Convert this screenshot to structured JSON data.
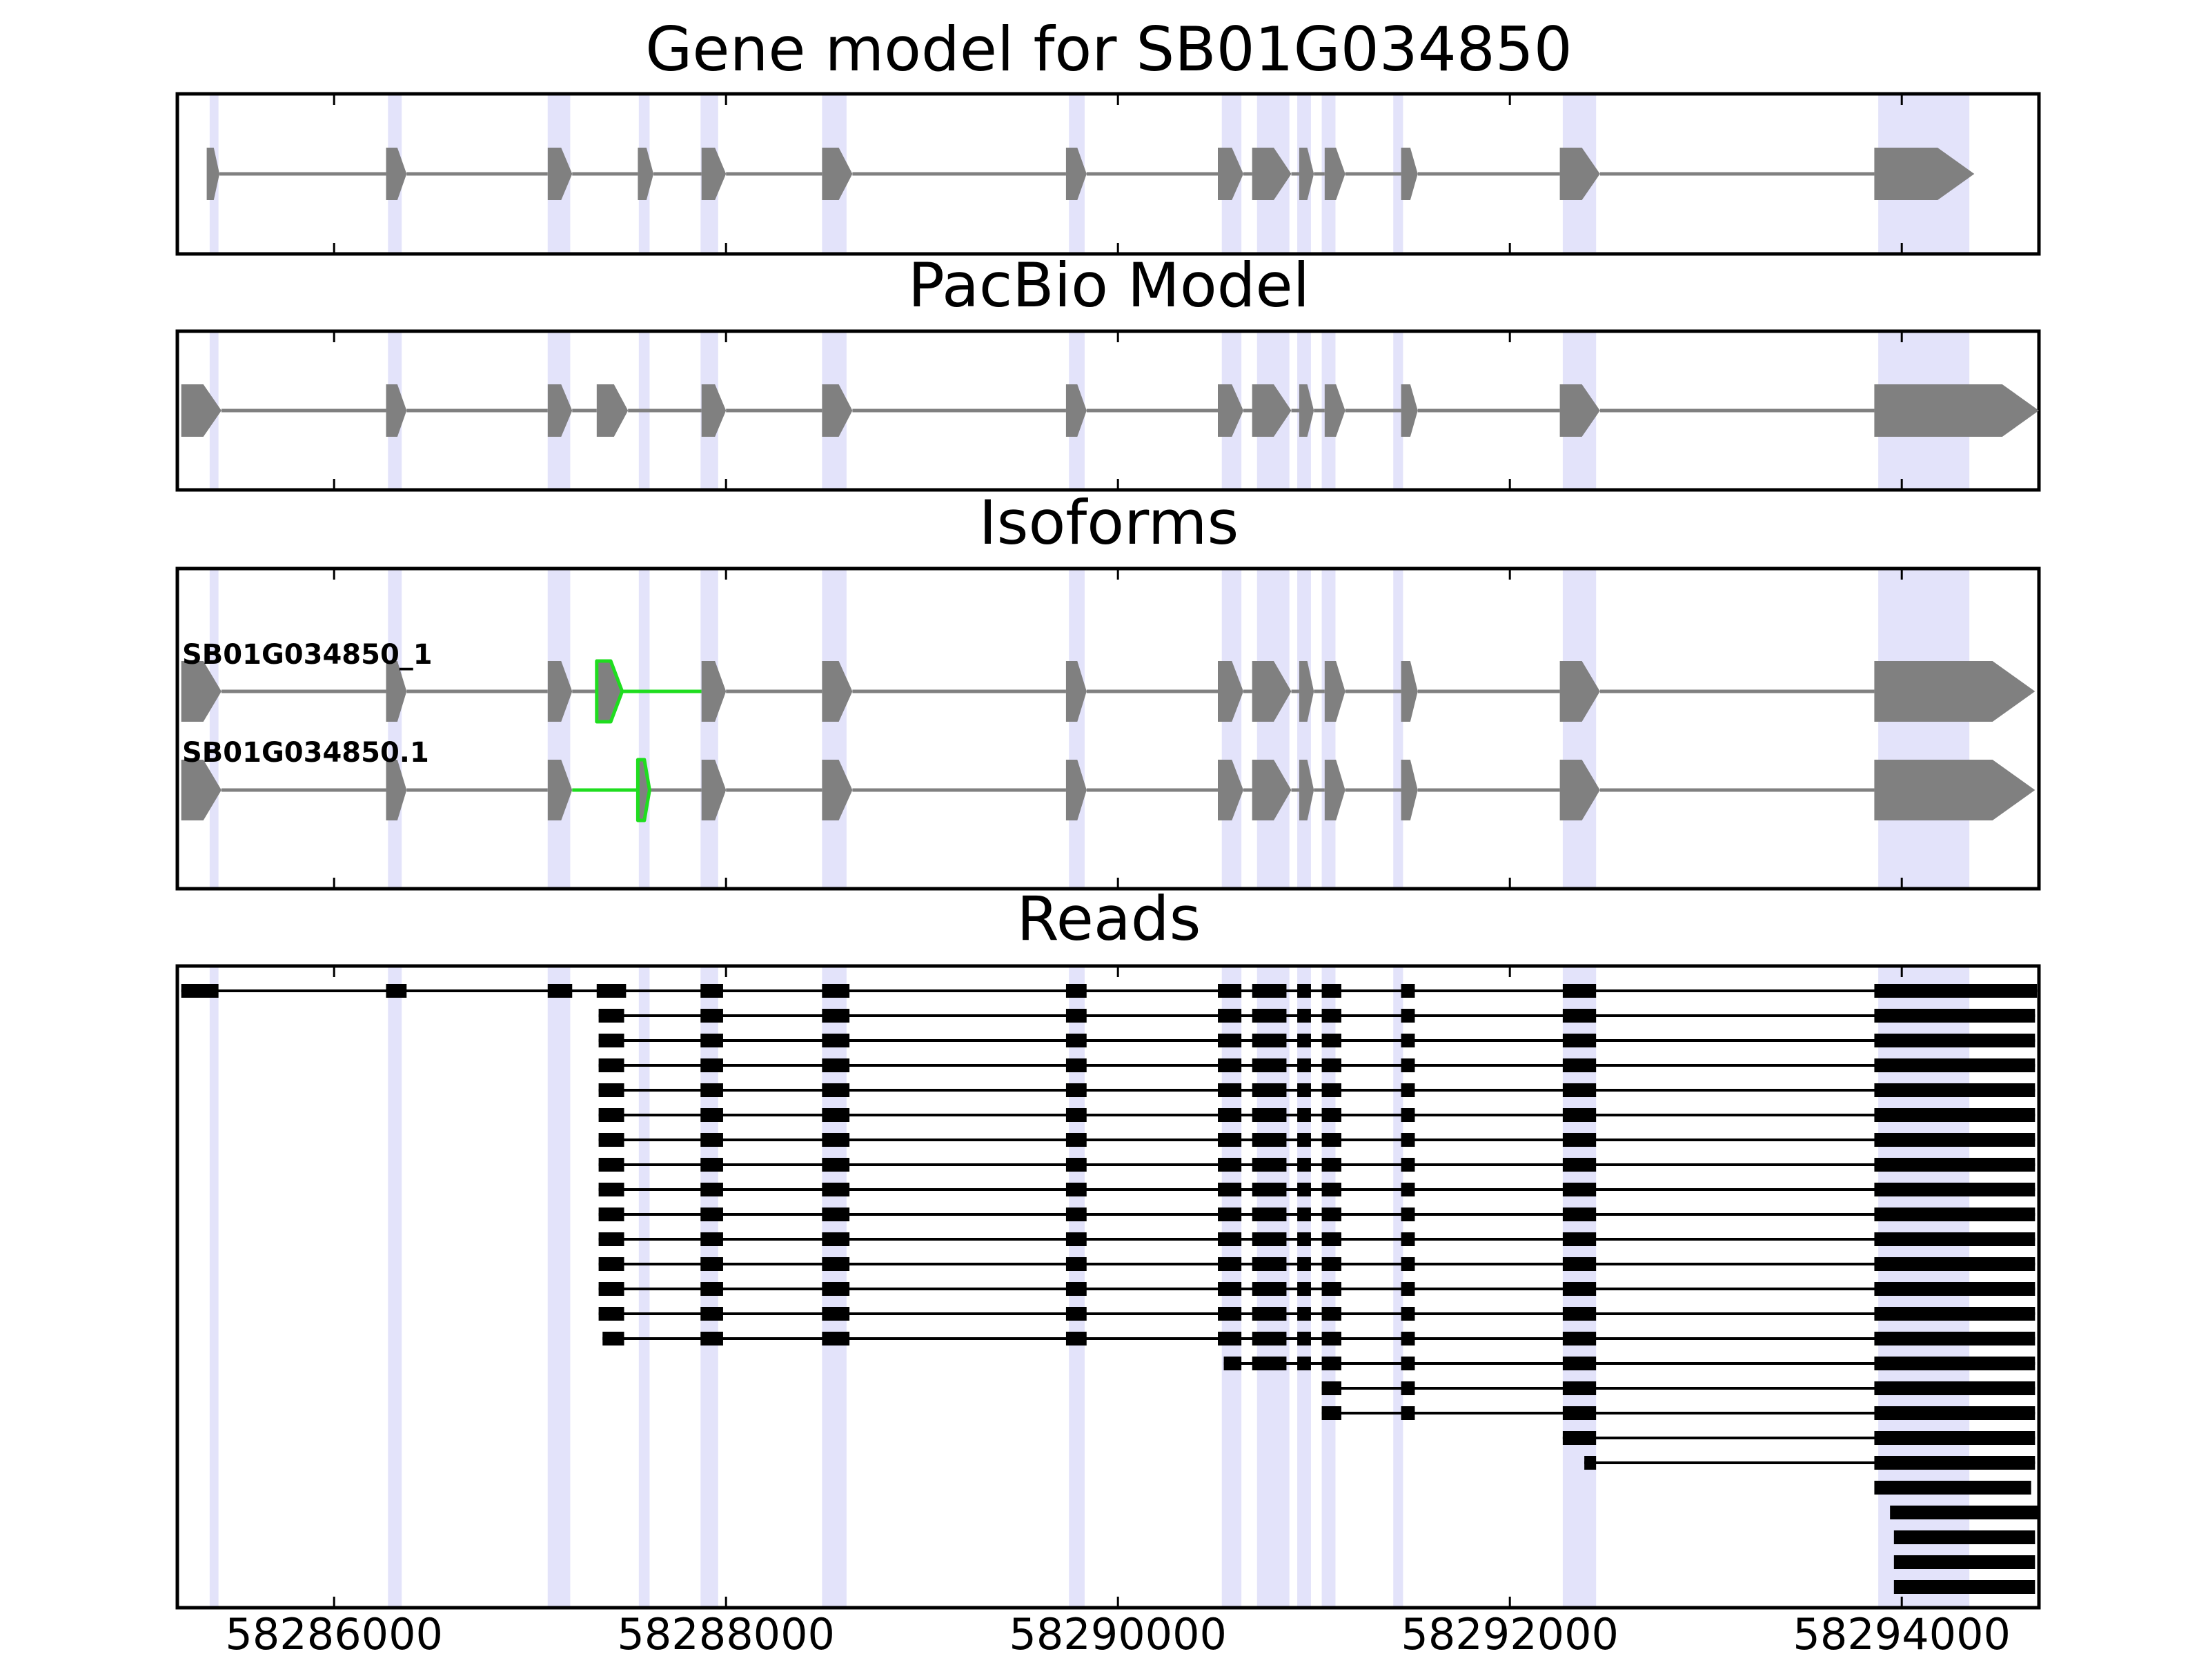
{
  "chart_data": {
    "type": "gene-track",
    "xlim": [
      58285200,
      58294700
    ],
    "x_ticks": [
      58286000,
      58288000,
      58290000,
      58292000,
      58294000
    ],
    "x_tick_labels": [
      "58286000",
      "58288000",
      "58290000",
      "58292000",
      "58294000"
    ],
    "colors": {
      "exon": "#808080",
      "intron": "#808080",
      "highlight": "#e3e3fa",
      "novel": "#1fdd1f",
      "read": "#000000"
    },
    "highlight_regions": [
      [
        58285365,
        58285410
      ],
      [
        58286275,
        58286345
      ],
      [
        58287090,
        58287205
      ],
      [
        58287555,
        58287610
      ],
      [
        58287870,
        58287960
      ],
      [
        58288490,
        58288615
      ],
      [
        58289750,
        58289830
      ],
      [
        58290530,
        58290630
      ],
      [
        58290710,
        58290875
      ],
      [
        58290915,
        58290985
      ],
      [
        58291040,
        58291110
      ],
      [
        58291405,
        58291455
      ],
      [
        58292270,
        58292440
      ],
      [
        58293880,
        58294345
      ]
    ],
    "gene_model": {
      "title": "Gene model for SB01G034850",
      "exons": [
        [
          58285350,
          58285415
        ],
        [
          58286265,
          58286370
        ],
        [
          58287090,
          58287215
        ],
        [
          58287550,
          58287630
        ],
        [
          58287875,
          58288000
        ],
        [
          58288490,
          58288645
        ],
        [
          58289735,
          58289840
        ],
        [
          58290510,
          58290640
        ],
        [
          58290685,
          58290885
        ],
        [
          58290925,
          58291000
        ],
        [
          58291055,
          58291160
        ],
        [
          58291445,
          58291530
        ],
        [
          58292255,
          58292460
        ],
        [
          58293860,
          58294370
        ]
      ]
    },
    "pacbio_model": {
      "title": "PacBio Model",
      "exons": [
        [
          58285220,
          58285425
        ],
        [
          58286265,
          58286370
        ],
        [
          58287090,
          58287215
        ],
        [
          58287340,
          58287500
        ],
        [
          58287875,
          58288000
        ],
        [
          58288490,
          58288645
        ],
        [
          58289735,
          58289840
        ],
        [
          58290510,
          58290640
        ],
        [
          58290685,
          58290885
        ],
        [
          58290925,
          58291000
        ],
        [
          58291055,
          58291160
        ],
        [
          58291445,
          58291530
        ],
        [
          58292255,
          58292460
        ],
        [
          58293860,
          58294700
        ]
      ]
    },
    "isoforms": {
      "title": "Isoforms",
      "items": [
        {
          "name": "SB01G034850_1",
          "exons": [
            [
              58285220,
              58285425
            ],
            [
              58286265,
              58286370
            ],
            [
              58287090,
              58287215
            ],
            [
              58287340,
              58287470
            ],
            [
              58287875,
              58288000
            ],
            [
              58288490,
              58288645
            ],
            [
              58289735,
              58289840
            ],
            [
              58290510,
              58290640
            ],
            [
              58290685,
              58290885
            ],
            [
              58290925,
              58291000
            ],
            [
              58291055,
              58291160
            ],
            [
              58291445,
              58291530
            ],
            [
              58292255,
              58292460
            ],
            [
              58293860,
              58294680
            ]
          ],
          "novel_exons": [
            3
          ],
          "novel_introns": [
            3
          ]
        },
        {
          "name": "SB01G034850.1",
          "exons": [
            [
              58285220,
              58285425
            ],
            [
              58286265,
              58286370
            ],
            [
              58287090,
              58287215
            ],
            [
              58287550,
              58287610
            ],
            [
              58287875,
              58288000
            ],
            [
              58288490,
              58288645
            ],
            [
              58289735,
              58289840
            ],
            [
              58290510,
              58290640
            ],
            [
              58290685,
              58290885
            ],
            [
              58290925,
              58291000
            ],
            [
              58291055,
              58291160
            ],
            [
              58291445,
              58291530
            ],
            [
              58292255,
              58292460
            ],
            [
              58293860,
              58294680
            ]
          ],
          "novel_exons": [
            3
          ],
          "novel_introns": [
            2
          ]
        }
      ]
    },
    "reads": {
      "title": "Reads",
      "items": [
        [
          [
            58285220,
            58285410
          ],
          [
            58286265,
            58286370
          ],
          [
            58287090,
            58287215
          ],
          [
            58287340,
            58287490
          ],
          [
            58287870,
            58287985
          ],
          [
            58288490,
            58288630
          ],
          [
            58289735,
            58289840
          ],
          [
            58290510,
            58290630
          ],
          [
            58290685,
            58290860
          ],
          [
            58290915,
            58290985
          ],
          [
            58291040,
            58291140
          ],
          [
            58291445,
            58291515
          ],
          [
            58292270,
            58292440
          ],
          [
            58293860,
            58294690
          ]
        ],
        [
          [
            58287350,
            58287480
          ],
          [
            58287870,
            58287985
          ],
          [
            58288490,
            58288630
          ],
          [
            58289735,
            58289840
          ],
          [
            58290510,
            58290630
          ],
          [
            58290685,
            58290860
          ],
          [
            58290915,
            58290985
          ],
          [
            58291040,
            58291140
          ],
          [
            58291445,
            58291515
          ],
          [
            58292270,
            58292440
          ],
          [
            58293860,
            58294680
          ]
        ],
        [
          [
            58287350,
            58287480
          ],
          [
            58287870,
            58287985
          ],
          [
            58288490,
            58288630
          ],
          [
            58289735,
            58289840
          ],
          [
            58290510,
            58290630
          ],
          [
            58290685,
            58290860
          ],
          [
            58290915,
            58290985
          ],
          [
            58291040,
            58291140
          ],
          [
            58291445,
            58291515
          ],
          [
            58292270,
            58292440
          ],
          [
            58293860,
            58294680
          ]
        ],
        [
          [
            58287350,
            58287480
          ],
          [
            58287870,
            58287985
          ],
          [
            58288490,
            58288630
          ],
          [
            58289735,
            58289840
          ],
          [
            58290510,
            58290630
          ],
          [
            58290685,
            58290860
          ],
          [
            58290915,
            58290985
          ],
          [
            58291040,
            58291140
          ],
          [
            58291445,
            58291515
          ],
          [
            58292270,
            58292440
          ],
          [
            58293860,
            58294680
          ]
        ],
        [
          [
            58287350,
            58287480
          ],
          [
            58287870,
            58287985
          ],
          [
            58288490,
            58288630
          ],
          [
            58289735,
            58289840
          ],
          [
            58290510,
            58290630
          ],
          [
            58290685,
            58290860
          ],
          [
            58290915,
            58290985
          ],
          [
            58291040,
            58291140
          ],
          [
            58291445,
            58291515
          ],
          [
            58292270,
            58292440
          ],
          [
            58293860,
            58294680
          ]
        ],
        [
          [
            58287350,
            58287480
          ],
          [
            58287870,
            58287985
          ],
          [
            58288490,
            58288630
          ],
          [
            58289735,
            58289840
          ],
          [
            58290510,
            58290630
          ],
          [
            58290685,
            58290860
          ],
          [
            58290915,
            58290985
          ],
          [
            58291040,
            58291140
          ],
          [
            58291445,
            58291515
          ],
          [
            58292270,
            58292440
          ],
          [
            58293860,
            58294680
          ]
        ],
        [
          [
            58287350,
            58287480
          ],
          [
            58287870,
            58287985
          ],
          [
            58288490,
            58288630
          ],
          [
            58289735,
            58289840
          ],
          [
            58290510,
            58290630
          ],
          [
            58290685,
            58290860
          ],
          [
            58290915,
            58290985
          ],
          [
            58291040,
            58291140
          ],
          [
            58291445,
            58291515
          ],
          [
            58292270,
            58292440
          ],
          [
            58293860,
            58294680
          ]
        ],
        [
          [
            58287350,
            58287480
          ],
          [
            58287870,
            58287985
          ],
          [
            58288490,
            58288630
          ],
          [
            58289735,
            58289840
          ],
          [
            58290510,
            58290630
          ],
          [
            58290685,
            58290860
          ],
          [
            58290915,
            58290985
          ],
          [
            58291040,
            58291140
          ],
          [
            58291445,
            58291515
          ],
          [
            58292270,
            58292440
          ],
          [
            58293860,
            58294680
          ]
        ],
        [
          [
            58287350,
            58287480
          ],
          [
            58287870,
            58287985
          ],
          [
            58288490,
            58288630
          ],
          [
            58289735,
            58289840
          ],
          [
            58290510,
            58290630
          ],
          [
            58290685,
            58290860
          ],
          [
            58290915,
            58290985
          ],
          [
            58291040,
            58291140
          ],
          [
            58291445,
            58291515
          ],
          [
            58292270,
            58292440
          ],
          [
            58293860,
            58294680
          ]
        ],
        [
          [
            58287350,
            58287480
          ],
          [
            58287870,
            58287985
          ],
          [
            58288490,
            58288630
          ],
          [
            58289735,
            58289840
          ],
          [
            58290510,
            58290630
          ],
          [
            58290685,
            58290860
          ],
          [
            58290915,
            58290985
          ],
          [
            58291040,
            58291140
          ],
          [
            58291445,
            58291515
          ],
          [
            58292270,
            58292440
          ],
          [
            58293860,
            58294680
          ]
        ],
        [
          [
            58287350,
            58287480
          ],
          [
            58287870,
            58287985
          ],
          [
            58288490,
            58288630
          ],
          [
            58289735,
            58289840
          ],
          [
            58290510,
            58290630
          ],
          [
            58290685,
            58290860
          ],
          [
            58290915,
            58290985
          ],
          [
            58291040,
            58291140
          ],
          [
            58291445,
            58291515
          ],
          [
            58292270,
            58292440
          ],
          [
            58293860,
            58294680
          ]
        ],
        [
          [
            58287350,
            58287480
          ],
          [
            58287870,
            58287985
          ],
          [
            58288490,
            58288630
          ],
          [
            58289735,
            58289840
          ],
          [
            58290510,
            58290630
          ],
          [
            58290685,
            58290860
          ],
          [
            58290915,
            58290985
          ],
          [
            58291040,
            58291140
          ],
          [
            58291445,
            58291515
          ],
          [
            58292270,
            58292440
          ],
          [
            58293860,
            58294680
          ]
        ],
        [
          [
            58287350,
            58287480
          ],
          [
            58287870,
            58287985
          ],
          [
            58288490,
            58288630
          ],
          [
            58289735,
            58289840
          ],
          [
            58290510,
            58290630
          ],
          [
            58290685,
            58290860
          ],
          [
            58290915,
            58290985
          ],
          [
            58291040,
            58291140
          ],
          [
            58291445,
            58291515
          ],
          [
            58292270,
            58292440
          ],
          [
            58293860,
            58294680
          ]
        ],
        [
          [
            58287350,
            58287480
          ],
          [
            58287870,
            58287985
          ],
          [
            58288490,
            58288630
          ],
          [
            58289735,
            58289840
          ],
          [
            58290510,
            58290630
          ],
          [
            58290685,
            58290860
          ],
          [
            58290915,
            58290985
          ],
          [
            58291040,
            58291140
          ],
          [
            58291445,
            58291515
          ],
          [
            58292270,
            58292440
          ],
          [
            58293860,
            58294680
          ]
        ],
        [
          [
            58287370,
            58287480
          ],
          [
            58287870,
            58287985
          ],
          [
            58288490,
            58288630
          ],
          [
            58289735,
            58289840
          ],
          [
            58290510,
            58290630
          ],
          [
            58290685,
            58290860
          ],
          [
            58290915,
            58290985
          ],
          [
            58291040,
            58291140
          ],
          [
            58291445,
            58291515
          ],
          [
            58292270,
            58292440
          ],
          [
            58293860,
            58294680
          ]
        ],
        [
          [
            58290540,
            58290630
          ],
          [
            58290685,
            58290860
          ],
          [
            58290915,
            58290985
          ],
          [
            58291040,
            58291140
          ],
          [
            58291445,
            58291515
          ],
          [
            58292270,
            58292440
          ],
          [
            58293860,
            58294680
          ]
        ],
        [
          [
            58291040,
            58291140
          ],
          [
            58291445,
            58291515
          ],
          [
            58292270,
            58292440
          ],
          [
            58293860,
            58294680
          ]
        ],
        [
          [
            58291040,
            58291140
          ],
          [
            58291445,
            58291515
          ],
          [
            58292270,
            58292440
          ],
          [
            58293860,
            58294680
          ]
        ],
        [
          [
            58292270,
            58292440
          ],
          [
            58293860,
            58294680
          ]
        ],
        [
          [
            58292380,
            58292440
          ],
          [
            58293860,
            58294680
          ]
        ],
        [
          [
            58293860,
            58294660
          ]
        ],
        [
          [
            58293940,
            58294700
          ]
        ],
        [
          [
            58293960,
            58294680
          ]
        ],
        [
          [
            58293960,
            58294680
          ]
        ],
        [
          [
            58293960,
            58294680
          ]
        ]
      ]
    }
  }
}
